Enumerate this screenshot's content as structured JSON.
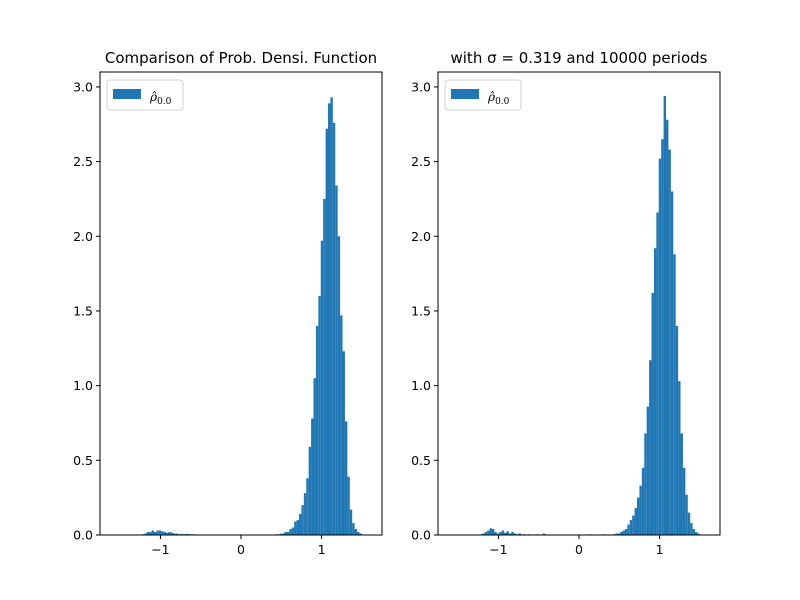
{
  "chart_data": [
    {
      "type": "bar",
      "title": "Comparison of Prob. Densi. Function",
      "xlabel": "",
      "ylabel": "",
      "xlim": [
        -1.75,
        1.75
      ],
      "ylim": [
        0,
        3.1
      ],
      "xticks": [
        -1,
        0,
        1
      ],
      "xtick_labels": [
        "−1",
        "0",
        "1"
      ],
      "yticks": [
        0,
        0.5,
        1.0,
        1.5,
        2.0,
        2.5,
        3.0
      ],
      "ytick_labels": [
        "0.0",
        "0.5",
        "1.0",
        "1.5",
        "2.0",
        "2.5",
        "3.0"
      ],
      "grid": false,
      "legend_position": "top-left",
      "color": "#1f77b4",
      "bin_width": 0.03,
      "series": [
        {
          "legend_base": "ρ̂",
          "legend_sub": "0.0",
          "bins": [
            [
              -1.23,
              0.005
            ],
            [
              -1.2,
              0.01
            ],
            [
              -1.17,
              0.02
            ],
            [
              -1.14,
              0.02
            ],
            [
              -1.11,
              0.03
            ],
            [
              -1.08,
              0.02
            ],
            [
              -1.05,
              0.03
            ],
            [
              -1.02,
              0.03
            ],
            [
              -0.99,
              0.025
            ],
            [
              -0.96,
              0.02
            ],
            [
              -0.93,
              0.015
            ],
            [
              -0.9,
              0.02
            ],
            [
              -0.87,
              0.015
            ],
            [
              -0.84,
              0.01
            ],
            [
              -0.81,
              0.01
            ],
            [
              -0.78,
              0.005
            ],
            [
              -0.75,
              0.008
            ],
            [
              -0.72,
              0.005
            ],
            [
              -0.69,
              0.008
            ],
            [
              -0.66,
              0.006
            ],
            [
              -0.63,
              0.005
            ],
            [
              -0.6,
              0.005
            ],
            [
              -0.57,
              0.004
            ],
            [
              -0.54,
              0.003
            ],
            [
              -0.51,
              0.002
            ],
            [
              0.42,
              0.005
            ],
            [
              0.45,
              0.005
            ],
            [
              0.48,
              0.008
            ],
            [
              0.51,
              0.01
            ],
            [
              0.54,
              0.02
            ],
            [
              0.57,
              0.02
            ],
            [
              0.6,
              0.04
            ],
            [
              0.63,
              0.05
            ],
            [
              0.66,
              0.09
            ],
            [
              0.69,
              0.1
            ],
            [
              0.72,
              0.14
            ],
            [
              0.75,
              0.2
            ],
            [
              0.78,
              0.28
            ],
            [
              0.81,
              0.38
            ],
            [
              0.84,
              0.59
            ],
            [
              0.87,
              0.78
            ],
            [
              0.9,
              1.05
            ],
            [
              0.93,
              1.4
            ],
            [
              0.96,
              1.6
            ],
            [
              0.99,
              1.97
            ],
            [
              1.02,
              2.25
            ],
            [
              1.05,
              2.72
            ],
            [
              1.08,
              2.89
            ],
            [
              1.11,
              2.93
            ],
            [
              1.14,
              2.76
            ],
            [
              1.17,
              2.34
            ],
            [
              1.2,
              2.0
            ],
            [
              1.23,
              1.47
            ],
            [
              1.26,
              1.23
            ],
            [
              1.29,
              0.76
            ],
            [
              1.32,
              0.39
            ],
            [
              1.35,
              0.17
            ],
            [
              1.38,
              0.08
            ],
            [
              1.41,
              0.04
            ],
            [
              1.44,
              0.02
            ],
            [
              1.47,
              0.01
            ]
          ]
        }
      ]
    },
    {
      "type": "bar",
      "title": "with σ = 0.319 and 10000 periods",
      "xlabel": "",
      "ylabel": "",
      "xlim": [
        -1.75,
        1.75
      ],
      "ylim": [
        0,
        3.1
      ],
      "xticks": [
        -1,
        0,
        1
      ],
      "xtick_labels": [
        "−1",
        "0",
        "1"
      ],
      "yticks": [
        0,
        0.5,
        1.0,
        1.5,
        2.0,
        2.5,
        3.0
      ],
      "ytick_labels": [
        "0.0",
        "0.5",
        "1.0",
        "1.5",
        "2.0",
        "2.5",
        "3.0"
      ],
      "grid": false,
      "legend_position": "top-left",
      "color": "#1f77b4",
      "bin_width": 0.03,
      "series": [
        {
          "legend_base": "ρ̂",
          "legend_sub": "0.0",
          "bins": [
            [
              -1.23,
              0.005
            ],
            [
              -1.2,
              0.01
            ],
            [
              -1.17,
              0.02
            ],
            [
              -1.14,
              0.03
            ],
            [
              -1.11,
              0.045
            ],
            [
              -1.08,
              0.04
            ],
            [
              -1.05,
              0.02
            ],
            [
              -1.02,
              0.01
            ],
            [
              -0.99,
              0.02
            ],
            [
              -0.96,
              0.03
            ],
            [
              -0.93,
              0.015
            ],
            [
              -0.9,
              0.025
            ],
            [
              -0.87,
              0.01
            ],
            [
              -0.84,
              0.02
            ],
            [
              -0.81,
              0.01
            ],
            [
              -0.78,
              0.005
            ],
            [
              -0.75,
              0.01
            ],
            [
              -0.69,
              0.005
            ],
            [
              -0.63,
              0.005
            ],
            [
              -0.54,
              0.005
            ],
            [
              -0.45,
              0.01
            ],
            [
              0.12,
              0.005
            ],
            [
              0.3,
              0.005
            ],
            [
              0.42,
              0.005
            ],
            [
              0.45,
              0.01
            ],
            [
              0.48,
              0.01
            ],
            [
              0.51,
              0.02
            ],
            [
              0.54,
              0.03
            ],
            [
              0.57,
              0.04
            ],
            [
              0.6,
              0.07
            ],
            [
              0.63,
              0.1
            ],
            [
              0.66,
              0.13
            ],
            [
              0.69,
              0.18
            ],
            [
              0.72,
              0.25
            ],
            [
              0.75,
              0.33
            ],
            [
              0.78,
              0.45
            ],
            [
              0.81,
              0.68
            ],
            [
              0.84,
              0.86
            ],
            [
              0.87,
              1.17
            ],
            [
              0.9,
              1.62
            ],
            [
              0.93,
              1.92
            ],
            [
              0.96,
              2.16
            ],
            [
              0.99,
              2.52
            ],
            [
              1.02,
              2.65
            ],
            [
              1.05,
              2.94
            ],
            [
              1.08,
              2.78
            ],
            [
              1.11,
              2.58
            ],
            [
              1.14,
              2.3
            ],
            [
              1.17,
              1.88
            ],
            [
              1.2,
              1.4
            ],
            [
              1.23,
              1.03
            ],
            [
              1.26,
              0.68
            ],
            [
              1.29,
              0.45
            ],
            [
              1.32,
              0.27
            ],
            [
              1.35,
              0.15
            ],
            [
              1.38,
              0.08
            ],
            [
              1.41,
              0.04
            ],
            [
              1.44,
              0.02
            ],
            [
              1.47,
              0.01
            ]
          ]
        }
      ]
    }
  ]
}
